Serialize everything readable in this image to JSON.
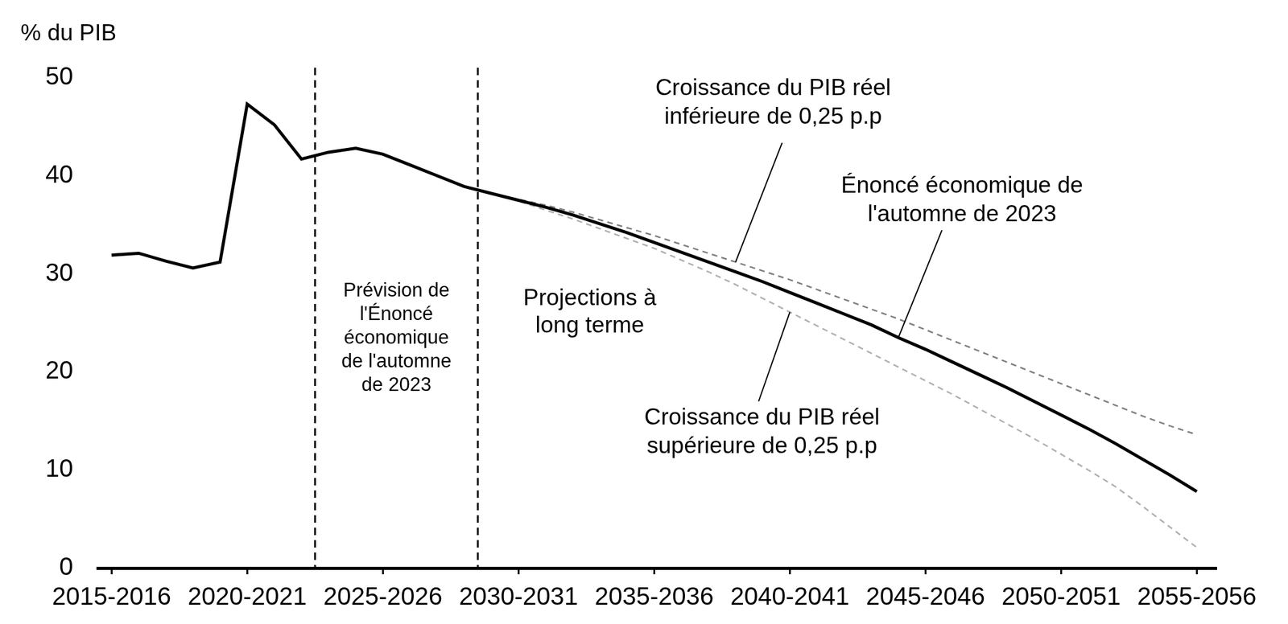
{
  "chart_data": {
    "type": "line",
    "y_label": "% du PIB",
    "x": [
      2015,
      2016,
      2017,
      2018,
      2019,
      2020,
      2021,
      2022,
      2023,
      2024,
      2025,
      2026,
      2027,
      2028,
      2029,
      2030,
      2031,
      2032,
      2033,
      2034,
      2035,
      2036,
      2037,
      2038,
      2039,
      2040,
      2041,
      2042,
      2043,
      2044,
      2045,
      2046,
      2047,
      2048,
      2049,
      2050,
      2051,
      2052,
      2053,
      2054,
      2055
    ],
    "xlim": [
      2014.5,
      2055.7
    ],
    "xticks": [
      {
        "value": 2015,
        "label": "2015-2016"
      },
      {
        "value": 2020,
        "label": "2020-2021"
      },
      {
        "value": 2025,
        "label": "2025-2026"
      },
      {
        "value": 2030,
        "label": "2030-2031"
      },
      {
        "value": 2035,
        "label": "2035-2036"
      },
      {
        "value": 2040,
        "label": "2040-2041"
      },
      {
        "value": 2045,
        "label": "2045-2046"
      },
      {
        "value": 2050,
        "label": "2050-2051"
      },
      {
        "value": 2055,
        "label": "2055-2056"
      }
    ],
    "ylim": [
      0,
      50
    ],
    "yticks": [
      0,
      10,
      20,
      30,
      40,
      50
    ],
    "grid": false,
    "vlines": [
      2022.5,
      2028.5
    ],
    "annotations": [
      "Prévision de\nl'Énoncé\néconomique\nde l'automne\nde 2023",
      "Projections à\nlong terme"
    ],
    "series": [
      {
        "name": "Énoncé économique de\nl'automne de 2023",
        "color": "#000000",
        "line_style": "solid",
        "values": [
          31.9,
          32.1,
          31.3,
          30.6,
          31.2,
          47.3,
          45.2,
          41.7,
          42.4,
          42.8,
          42.2,
          41.1,
          40.0,
          38.9,
          38.2,
          37.5,
          36.8,
          36.0,
          35.1,
          34.2,
          33.2,
          32.2,
          31.2,
          30.2,
          29.2,
          28.1,
          27.0,
          25.9,
          24.8,
          23.5,
          22.3,
          21.0,
          19.7,
          18.4,
          17.0,
          15.6,
          14.2,
          12.7,
          11.1,
          9.5,
          7.8
        ]
      },
      {
        "name": "Croissance du PIB réel\ninférieure de 0,25 p.p",
        "color": "#7f7f7f",
        "line_style": "dashed",
        "values": [
          null,
          null,
          null,
          null,
          null,
          null,
          null,
          null,
          null,
          null,
          null,
          null,
          null,
          null,
          38.2,
          37.6,
          37.0,
          36.3,
          35.5,
          34.7,
          33.9,
          33.0,
          32.1,
          31.2,
          30.3,
          29.4,
          28.4,
          27.4,
          26.4,
          25.4,
          24.3,
          23.2,
          22.1,
          21.0,
          19.9,
          18.8,
          17.7,
          16.6,
          15.5,
          14.5,
          13.6
        ]
      },
      {
        "name": "Croissance du PIB réel\nsupérieure de 0,25 p.p",
        "color": "#b0b0b0",
        "line_style": "dashed",
        "values": [
          null,
          null,
          null,
          null,
          null,
          null,
          null,
          null,
          null,
          null,
          null,
          null,
          null,
          null,
          38.2,
          37.4,
          36.5,
          35.6,
          34.6,
          33.6,
          32.6,
          31.4,
          30.2,
          28.9,
          27.5,
          26.1,
          24.7,
          23.3,
          21.9,
          20.5,
          19.1,
          17.7,
          16.2,
          14.7,
          13.2,
          11.6,
          10.0,
          8.3,
          6.3,
          4.2,
          2.1
        ]
      }
    ]
  }
}
